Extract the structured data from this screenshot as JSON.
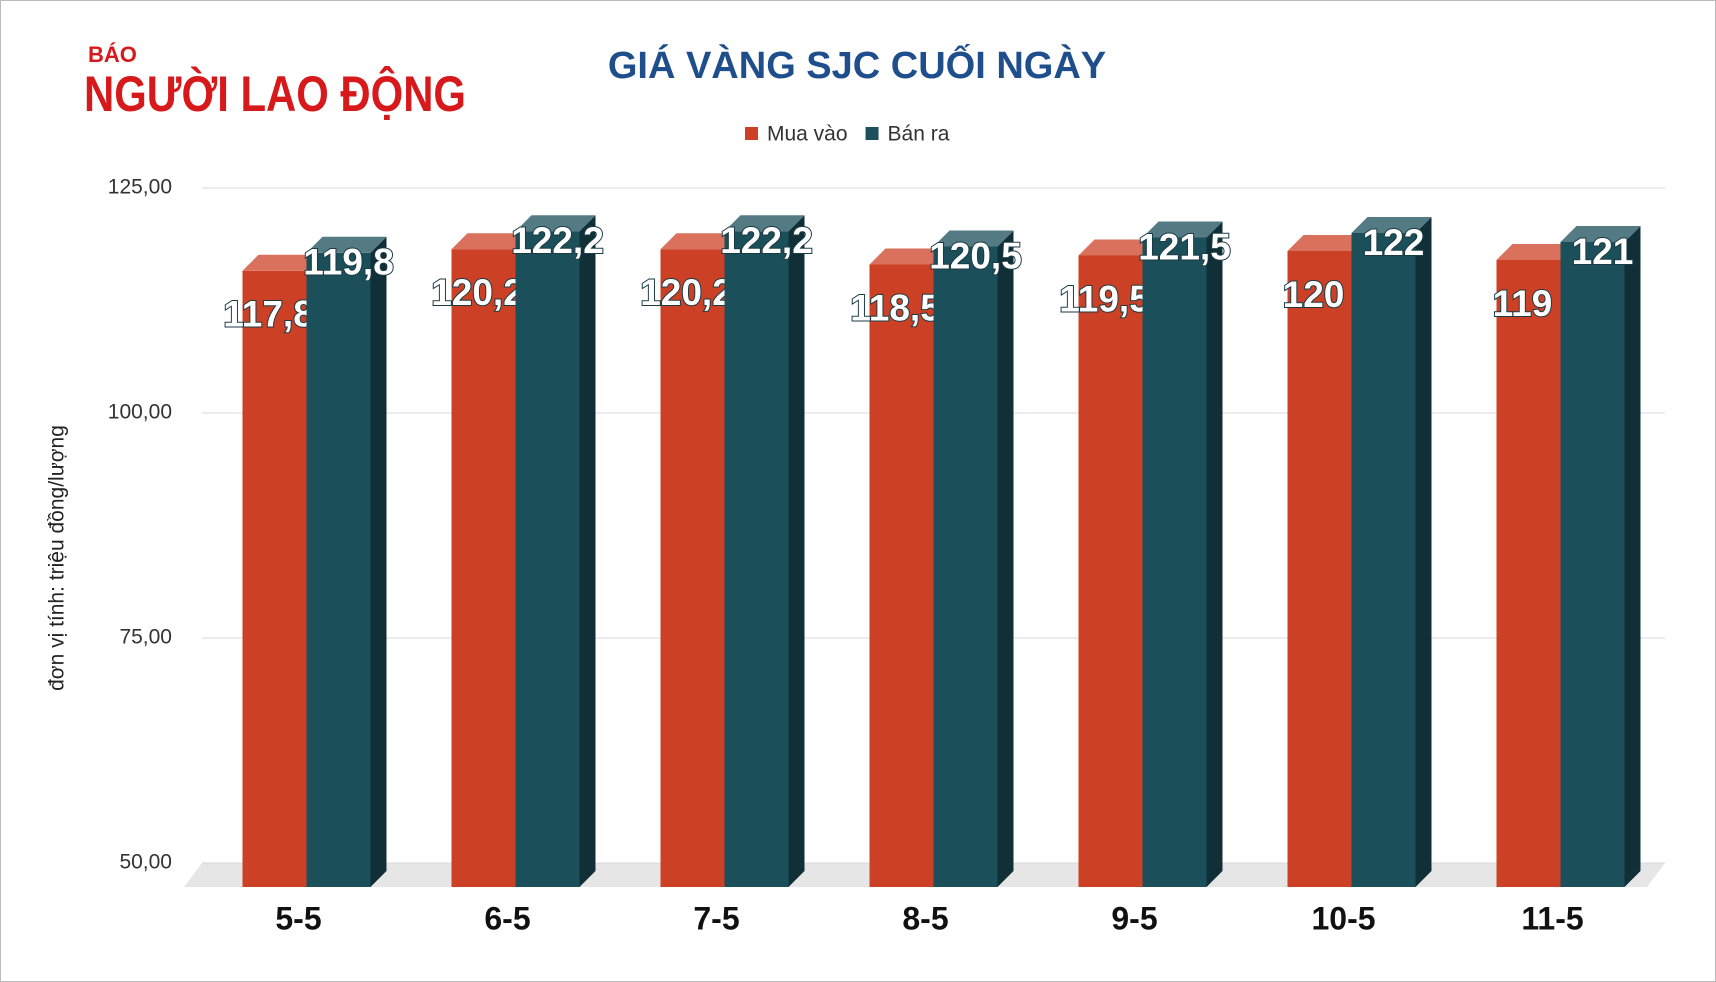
{
  "logo": {
    "small": "BÁO",
    "name": "NGƯỜI LAO ĐỘNG"
  },
  "chart_data": {
    "type": "bar3d",
    "title": "GIÁ VÀNG SJC CUỐI NGÀY",
    "y_label": "đơn vị tính: triệu đồng/lượng",
    "categories": [
      "5-5",
      "6-5",
      "7-5",
      "8-5",
      "9-5",
      "10-5",
      "11-5"
    ],
    "series": [
      {
        "name": "Mua vào",
        "color": "#cc4125",
        "values": [
          117.8,
          120.2,
          120.2,
          118.5,
          119.5,
          120,
          119
        ],
        "value_labels": [
          "117,8",
          "120,2",
          "120,2",
          "118,5",
          "119,5",
          "120",
          "119"
        ]
      },
      {
        "name": "Bán ra",
        "color": "#1b4f5a",
        "values": [
          119.8,
          122.2,
          122.2,
          120.5,
          121.5,
          122,
          121
        ],
        "value_labels": [
          "119,8",
          "122,2",
          "122,2",
          "120,5",
          "121,5",
          "122",
          "121"
        ]
      }
    ],
    "ylim": [
      50,
      125
    ],
    "yticks": [
      {
        "value": 50,
        "label": "50,00"
      },
      {
        "value": 75,
        "label": "75,00"
      },
      {
        "value": 100,
        "label": "100,00"
      },
      {
        "value": 125,
        "label": "125,00"
      }
    ],
    "grid": true,
    "legend": "top"
  }
}
